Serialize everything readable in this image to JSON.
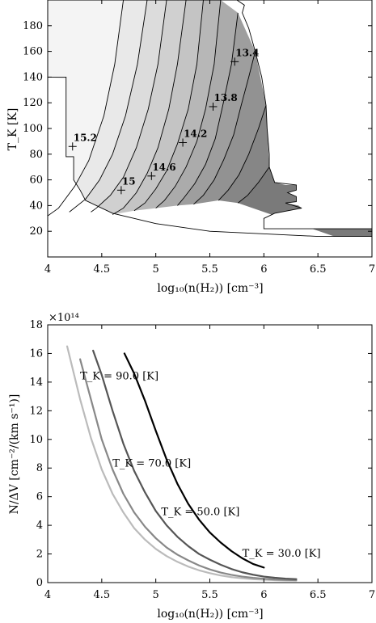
{
  "chart_data": [
    {
      "type": "contour",
      "xlabel": "log₁₀(n(H₂)) [cm⁻³]",
      "ylabel": "T_K [K]",
      "xlim": [
        4,
        7
      ],
      "ylim": [
        0,
        200
      ],
      "xticks": [
        4,
        4.5,
        5,
        5.5,
        6,
        6.5,
        7
      ],
      "xtick_labels": [
        "4",
        "4.5",
        "5",
        "5.5",
        "6",
        "6.5",
        "7"
      ],
      "yticks": [
        20,
        40,
        60,
        80,
        100,
        120,
        140,
        160,
        180
      ],
      "ytick_labels": [
        "20",
        "40",
        "60",
        "80",
        "100",
        "120",
        "140",
        "160",
        "180"
      ],
      "grid": false,
      "contour_levels": [
        "13.4",
        "13.8",
        "14.2",
        "14.6",
        "15",
        "15.2"
      ],
      "contour_lines": [
        {
          "points": [
            [
              4.7,
              200
            ],
            [
              4.62,
              150
            ],
            [
              4.52,
              110
            ],
            [
              4.38,
              75
            ],
            [
              4.25,
              55
            ],
            [
              4.1,
              38
            ],
            [
              4.0,
              32
            ]
          ]
        },
        {
          "points": [
            [
              4.92,
              200
            ],
            [
              4.83,
              150
            ],
            [
              4.72,
              110
            ],
            [
              4.6,
              80
            ],
            [
              4.48,
              60
            ],
            [
              4.35,
              45
            ],
            [
              4.2,
              35
            ]
          ]
        },
        {
          "points": [
            [
              5.1,
              200
            ],
            [
              5.02,
              150
            ],
            [
              4.93,
              115
            ],
            [
              4.82,
              85
            ],
            [
              4.7,
              62
            ],
            [
              4.58,
              48
            ],
            [
              4.45,
              38
            ],
            [
              4.4,
              35
            ]
          ]
        },
        {
          "points": [
            [
              5.28,
              200
            ],
            [
              5.2,
              150
            ],
            [
              5.12,
              115
            ],
            [
              5.02,
              85
            ],
            [
              4.92,
              65
            ],
            [
              4.82,
              50
            ],
            [
              4.7,
              38
            ],
            [
              4.6,
              33
            ]
          ]
        },
        {
          "points": [
            [
              5.44,
              200
            ],
            [
              5.38,
              150
            ],
            [
              5.3,
              115
            ],
            [
              5.2,
              88
            ],
            [
              5.1,
              67
            ],
            [
              5.0,
              53
            ],
            [
              4.9,
              42
            ],
            [
              4.8,
              36
            ]
          ]
        },
        {
          "points": [
            [
              5.6,
              200
            ],
            [
              5.54,
              150
            ],
            [
              5.46,
              115
            ],
            [
              5.38,
              90
            ],
            [
              5.28,
              70
            ],
            [
              5.18,
              55
            ],
            [
              5.08,
              44
            ],
            [
              5.0,
              38
            ]
          ]
        },
        {
          "points": [
            [
              5.76,
              190
            ],
            [
              5.7,
              150
            ],
            [
              5.62,
              118
            ],
            [
              5.55,
              92
            ],
            [
              5.46,
              72
            ],
            [
              5.36,
              57
            ],
            [
              5.26,
              46
            ],
            [
              5.2,
              40
            ]
          ]
        },
        {
          "points": [
            [
              5.92,
              160
            ],
            [
              5.86,
              140
            ],
            [
              5.79,
              118
            ],
            [
              5.72,
              95
            ],
            [
              5.63,
              76
            ],
            [
              5.54,
              60
            ],
            [
              5.44,
              48
            ],
            [
              5.35,
              41
            ]
          ]
        },
        {
          "points": [
            [
              6.02,
              118
            ],
            [
              5.95,
              100
            ],
            [
              5.86,
              80
            ],
            [
              5.77,
              64
            ],
            [
              5.67,
              52
            ],
            [
              5.58,
              44
            ]
          ]
        },
        {
          "points": [
            [
              6.05,
              70
            ],
            [
              5.95,
              58
            ],
            [
              5.85,
              48
            ],
            [
              5.76,
              42
            ]
          ]
        }
      ],
      "markers": [
        {
          "label": "13.4",
          "x": 5.73,
          "y": 152
        },
        {
          "label": "13.8",
          "x": 5.53,
          "y": 117
        },
        {
          "label": "14.2",
          "x": 5.25,
          "y": 89
        },
        {
          "label": "14.6",
          "x": 4.96,
          "y": 63
        },
        {
          "label": "15",
          "x": 4.68,
          "y": 52
        },
        {
          "label": "15.2",
          "x": 4.23,
          "y": 86
        }
      ],
      "fill_colors": [
        "#f4f4f4",
        "#e9e9e9",
        "#dcdcdc",
        "#d0d0d0",
        "#c4c4c4",
        "#b7b7b7",
        "#ababab",
        "#9e9e9e",
        "#929292",
        "#868686",
        "#7a7a7a"
      ]
    },
    {
      "type": "line",
      "xlabel": "log₁₀(n(H₂)) [cm⁻³]",
      "ylabel": "N/ΔV [cm⁻²/(km s⁻¹)]",
      "multiplier": "×10¹⁴",
      "xlim": [
        4,
        7
      ],
      "ylim": [
        0,
        18
      ],
      "xticks": [
        4,
        4.5,
        5,
        5.5,
        6,
        6.5,
        7
      ],
      "xtick_labels": [
        "4",
        "4.5",
        "5",
        "5.5",
        "6",
        "6.5",
        "7"
      ],
      "yticks": [
        0,
        2,
        4,
        6,
        8,
        10,
        12,
        14,
        16,
        18
      ],
      "ytick_labels": [
        "0",
        "2",
        "4",
        "6",
        "8",
        "10",
        "12",
        "14",
        "16",
        "18"
      ],
      "grid": false,
      "series": [
        {
          "name": "T_K = 30.0 [K]",
          "color": "#000000",
          "x": [
            4.71,
            4.8,
            4.9,
            5.0,
            5.1,
            5.2,
            5.3,
            5.4,
            5.5,
            5.6,
            5.7,
            5.8,
            5.9,
            6.0
          ],
          "y": [
            16.0,
            14.6,
            12.7,
            10.6,
            8.6,
            6.9,
            5.5,
            4.4,
            3.5,
            2.8,
            2.2,
            1.7,
            1.3,
            1.05
          ]
        },
        {
          "name": "T_K = 50.0 [K]",
          "color": "#555555",
          "x": [
            4.42,
            4.5,
            4.6,
            4.7,
            4.8,
            4.9,
            5.0,
            5.1,
            5.2,
            5.3,
            5.4,
            5.5,
            5.6,
            5.7,
            5.8,
            5.9,
            6.0,
            6.1,
            6.2,
            6.3
          ],
          "y": [
            16.2,
            14.5,
            12.0,
            9.7,
            7.8,
            6.3,
            5.0,
            4.0,
            3.2,
            2.55,
            2.0,
            1.6,
            1.25,
            0.95,
            0.72,
            0.55,
            0.42,
            0.34,
            0.28,
            0.24
          ]
        },
        {
          "name": "T_K = 70.0 [K]",
          "color": "#888888",
          "x": [
            4.3,
            4.4,
            4.5,
            4.6,
            4.7,
            4.8,
            4.9,
            5.0,
            5.1,
            5.2,
            5.3,
            5.4,
            5.5,
            5.6,
            5.7,
            5.8,
            5.9,
            6.0,
            6.1,
            6.2,
            6.3
          ],
          "y": [
            15.6,
            12.8,
            10.0,
            7.9,
            6.2,
            4.9,
            3.9,
            3.1,
            2.45,
            1.95,
            1.55,
            1.2,
            0.92,
            0.7,
            0.54,
            0.42,
            0.33,
            0.27,
            0.22,
            0.19,
            0.17
          ]
        },
        {
          "name": "T_K = 90.0 [K]",
          "color": "#bbbbbb",
          "x": [
            4.18,
            4.3,
            4.4,
            4.5,
            4.6,
            4.7,
            4.8,
            4.9,
            5.0,
            5.1,
            5.2,
            5.3,
            5.4,
            5.5,
            5.6,
            5.7,
            5.8,
            5.9,
            6.0,
            6.1,
            6.2,
            6.3
          ],
          "y": [
            16.5,
            12.8,
            10.1,
            7.9,
            6.2,
            4.9,
            3.8,
            3.0,
            2.35,
            1.85,
            1.45,
            1.12,
            0.86,
            0.66,
            0.5,
            0.38,
            0.3,
            0.24,
            0.2,
            0.17,
            0.15,
            0.14
          ]
        }
      ],
      "annotations": [
        {
          "text": "T_K = 90.0 [K]",
          "x": 4.3,
          "y": 14.2
        },
        {
          "text": "T_K = 70.0 [K]",
          "x": 4.6,
          "y": 8.1
        },
        {
          "text": "T_K = 50.0 [K]",
          "x": 5.05,
          "y": 4.7
        },
        {
          "text": "T_K = 30.0 [K]",
          "x": 5.8,
          "y": 1.8
        }
      ]
    }
  ]
}
